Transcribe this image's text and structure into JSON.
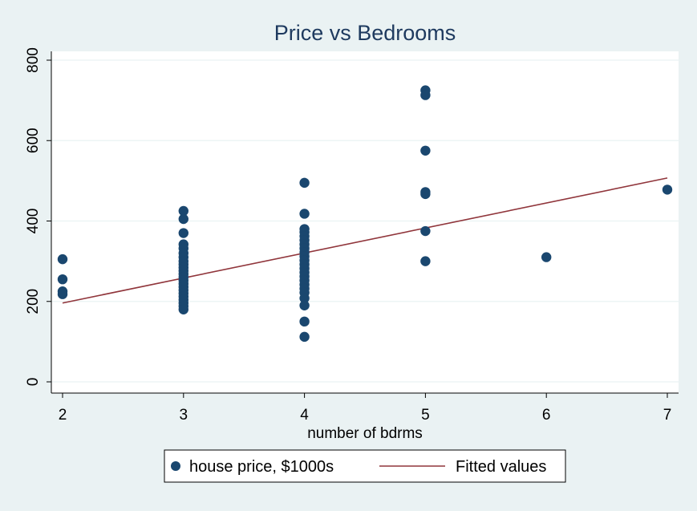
{
  "chart_data": {
    "type": "scatter",
    "title": "Price vs Bedrooms",
    "xlabel": "number of bdrms",
    "ylabel": "",
    "xlim": [
      2,
      7
    ],
    "ylim": [
      0,
      800
    ],
    "x_ticks": [
      2,
      3,
      4,
      5,
      6,
      7
    ],
    "y_ticks": [
      0,
      200,
      400,
      600,
      800
    ],
    "grid": true,
    "legend_position": "bottom",
    "colors": {
      "points": "#1a476f",
      "fit": "#90353b",
      "plot_bg": "#ffffff",
      "page_bg": "#eaf2f3",
      "grid": "#eaf2f3"
    },
    "series": [
      {
        "name": "house price, $1000s",
        "kind": "scatter",
        "points": [
          {
            "x": 2,
            "y": 305
          },
          {
            "x": 2,
            "y": 255
          },
          {
            "x": 2,
            "y": 225
          },
          {
            "x": 2,
            "y": 218
          },
          {
            "x": 3,
            "y": 425
          },
          {
            "x": 3,
            "y": 405
          },
          {
            "x": 3,
            "y": 370
          },
          {
            "x": 3,
            "y": 342
          },
          {
            "x": 3,
            "y": 332
          },
          {
            "x": 3,
            "y": 320
          },
          {
            "x": 3,
            "y": 310
          },
          {
            "x": 3,
            "y": 300
          },
          {
            "x": 3,
            "y": 292
          },
          {
            "x": 3,
            "y": 284
          },
          {
            "x": 3,
            "y": 276
          },
          {
            "x": 3,
            "y": 268
          },
          {
            "x": 3,
            "y": 260
          },
          {
            "x": 3,
            "y": 252
          },
          {
            "x": 3,
            "y": 244
          },
          {
            "x": 3,
            "y": 236
          },
          {
            "x": 3,
            "y": 228
          },
          {
            "x": 3,
            "y": 220
          },
          {
            "x": 3,
            "y": 212
          },
          {
            "x": 3,
            "y": 204
          },
          {
            "x": 3,
            "y": 196
          },
          {
            "x": 3,
            "y": 188
          },
          {
            "x": 3,
            "y": 180
          },
          {
            "x": 4,
            "y": 495
          },
          {
            "x": 4,
            "y": 418
          },
          {
            "x": 4,
            "y": 380
          },
          {
            "x": 4,
            "y": 372
          },
          {
            "x": 4,
            "y": 362
          },
          {
            "x": 4,
            "y": 352
          },
          {
            "x": 4,
            "y": 342
          },
          {
            "x": 4,
            "y": 332
          },
          {
            "x": 4,
            "y": 322
          },
          {
            "x": 4,
            "y": 312
          },
          {
            "x": 4,
            "y": 302
          },
          {
            "x": 4,
            "y": 292
          },
          {
            "x": 4,
            "y": 282
          },
          {
            "x": 4,
            "y": 272
          },
          {
            "x": 4,
            "y": 262
          },
          {
            "x": 4,
            "y": 252
          },
          {
            "x": 4,
            "y": 242
          },
          {
            "x": 4,
            "y": 232
          },
          {
            "x": 4,
            "y": 222
          },
          {
            "x": 4,
            "y": 208
          },
          {
            "x": 4,
            "y": 190
          },
          {
            "x": 4,
            "y": 150
          },
          {
            "x": 4,
            "y": 112
          },
          {
            "x": 5,
            "y": 725
          },
          {
            "x": 5,
            "y": 713
          },
          {
            "x": 5,
            "y": 575
          },
          {
            "x": 5,
            "y": 472
          },
          {
            "x": 5,
            "y": 467
          },
          {
            "x": 5,
            "y": 375
          },
          {
            "x": 5,
            "y": 300
          },
          {
            "x": 6,
            "y": 310
          },
          {
            "x": 7,
            "y": 478
          }
        ]
      },
      {
        "name": "Fitted values",
        "kind": "line",
        "points": [
          {
            "x": 2,
            "y": 196
          },
          {
            "x": 7,
            "y": 507
          }
        ]
      }
    ]
  }
}
